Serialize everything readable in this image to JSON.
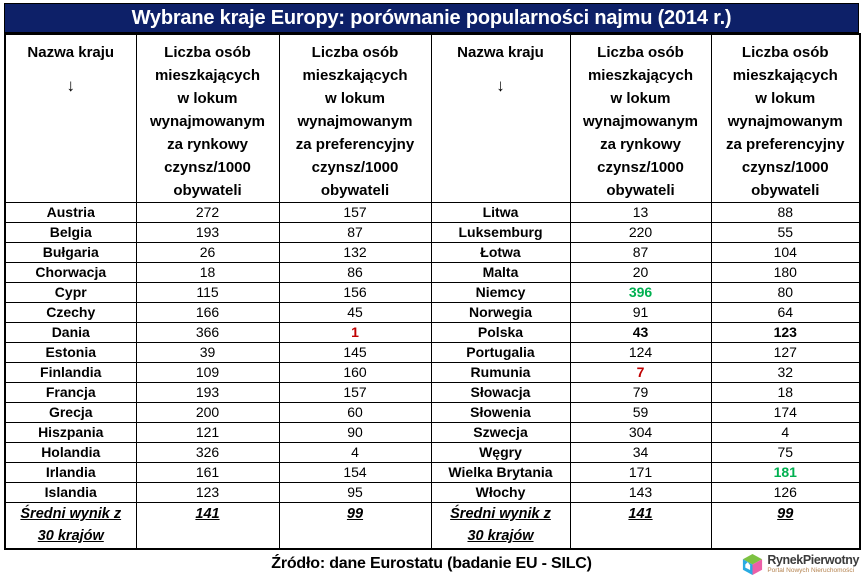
{
  "title": "Wybrane kraje Europy: porównanie popularności najmu (2014 r.)",
  "columns": {
    "country_header": "Nazwa kraju",
    "arrow": "↓",
    "market_rent_header": "Liczba osób\nmieszkających\nw lokum\nwynajmowanym\nza rynkowy\nczynsz/1000\nobywateli",
    "preferential_rent_header": "Liczba osób\nmieszkających\nw lokum\nwynajmowanym\nza preferencyjny\nczynsz/1000\nobywateli"
  },
  "left_rows": [
    {
      "country": "Austria",
      "market": "272",
      "preferential": "157"
    },
    {
      "country": "Belgia",
      "market": "193",
      "preferential": "87"
    },
    {
      "country": "Bułgaria",
      "market": "26",
      "preferential": "132"
    },
    {
      "country": "Chorwacja",
      "market": "18",
      "preferential": "86"
    },
    {
      "country": "Cypr",
      "market": "115",
      "preferential": "156"
    },
    {
      "country": "Czechy",
      "market": "166",
      "preferential": "45"
    },
    {
      "country": "Dania",
      "market": "366",
      "preferential": "1",
      "preferential_style": "red"
    },
    {
      "country": "Estonia",
      "market": "39",
      "preferential": "145"
    },
    {
      "country": "Finlandia",
      "market": "109",
      "preferential": "160"
    },
    {
      "country": "Francja",
      "market": "193",
      "preferential": "157"
    },
    {
      "country": "Grecja",
      "market": "200",
      "preferential": "60"
    },
    {
      "country": "Hiszpania",
      "market": "121",
      "preferential": "90"
    },
    {
      "country": "Holandia",
      "market": "326",
      "preferential": "4"
    },
    {
      "country": "Irlandia",
      "market": "161",
      "preferential": "154"
    },
    {
      "country": "Islandia",
      "market": "123",
      "preferential": "95"
    }
  ],
  "right_rows": [
    {
      "country": "Litwa",
      "market": "13",
      "preferential": "88"
    },
    {
      "country": "Luksemburg",
      "market": "220",
      "preferential": "55"
    },
    {
      "country": "Łotwa",
      "market": "87",
      "preferential": "104"
    },
    {
      "country": "Malta",
      "market": "20",
      "preferential": "180"
    },
    {
      "country": "Niemcy",
      "market": "396",
      "preferential": "80",
      "market_style": "green"
    },
    {
      "country": "Norwegia",
      "market": "91",
      "preferential": "64"
    },
    {
      "country": "Polska",
      "market": "43",
      "preferential": "123",
      "market_style": "bold",
      "preferential_style": "bold"
    },
    {
      "country": "Portugalia",
      "market": "124",
      "preferential": "127"
    },
    {
      "country": "Rumunia",
      "market": "7",
      "preferential": "32",
      "market_style": "red"
    },
    {
      "country": "Słowacja",
      "market": "79",
      "preferential": "18"
    },
    {
      "country": "Słowenia",
      "market": "59",
      "preferential": "174"
    },
    {
      "country": "Szwecja",
      "market": "304",
      "preferential": "4"
    },
    {
      "country": "Węgry",
      "market": "34",
      "preferential": "75"
    },
    {
      "country": "Wielka Brytania",
      "market": "171",
      "preferential": "181",
      "preferential_style": "green"
    },
    {
      "country": "Włochy",
      "market": "143",
      "preferential": "126"
    }
  ],
  "summary": {
    "label": "Średni wynik z\n30 krajów",
    "market": "141",
    "preferential": "99"
  },
  "footer": {
    "source": "Źródło: dane Eurostatu (badanie EU - SILC)"
  },
  "logo": {
    "name": "RynekPierwotny",
    "subtitle": "Portal Nowych Nieruchomości"
  },
  "colors": {
    "title_bg": "#0d2068",
    "title_text": "#ffffff",
    "highlight_green": "#00b050",
    "highlight_red": "#c00000",
    "border": "#000000"
  }
}
